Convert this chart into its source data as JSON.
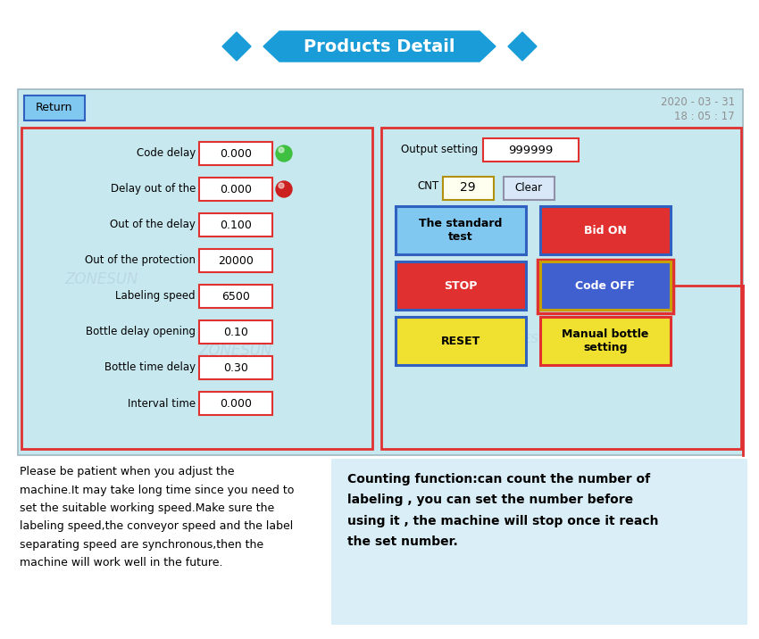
{
  "title": "Products Detail",
  "title_bg": "#1a9cd8",
  "title_color": "#ffffff",
  "screen_bg": "#c8e8f0",
  "screen_border": "#e03030",
  "return_btn_color": "#80c8f0",
  "return_btn_text": "Return",
  "date_text": "2020 - 03 - 31",
  "time_text": "18 : 05 : 17",
  "left_fields": [
    {
      "label": "Code delay",
      "value": "0.000",
      "indicator": "green"
    },
    {
      "label": "Delay out of the",
      "value": "0.000",
      "indicator": "red"
    },
    {
      "label": "Out of the delay",
      "value": "0.100"
    },
    {
      "label": "Out of the protection",
      "value": "20000"
    },
    {
      "label": "Labeling speed",
      "value": "6500"
    },
    {
      "label": "Bottle delay opening",
      "value": "0.10"
    },
    {
      "label": "Bottle time delay",
      "value": "0.30"
    },
    {
      "label": "Interval time",
      "value": "0.000"
    }
  ],
  "right_top": {
    "output_label": "Output setting",
    "output_value": "999999",
    "cnt_label": "CNT",
    "cnt_value": "29",
    "clear_text": "Clear"
  },
  "right_buttons": [
    {
      "text": "The standard\ntest",
      "color": "#80c8f0",
      "text_color": "#000000",
      "border": "#3060c0",
      "row": 0,
      "col": 0
    },
    {
      "text": "Bid ON",
      "color": "#e03030",
      "text_color": "#ffffff",
      "border": "#3060c0",
      "row": 0,
      "col": 1
    },
    {
      "text": "STOP",
      "color": "#e03030",
      "text_color": "#ffffff",
      "border": "#3060c0",
      "row": 1,
      "col": 0
    },
    {
      "text": "Code OFF",
      "color": "#4060d0",
      "text_color": "#ffffff",
      "border": "#c8a000",
      "highlighted": true,
      "row": 1,
      "col": 1
    },
    {
      "text": "RESET",
      "color": "#f0e030",
      "text_color": "#000000",
      "border": "#3060c0",
      "row": 2,
      "col": 0
    },
    {
      "text": "Manual bottle\nsetting",
      "color": "#f0e030",
      "text_color": "#000000",
      "border": "#e03030",
      "row": 2,
      "col": 1
    }
  ],
  "left_text": "Please be patient when you adjust the\nmachine.It may take long time since you need to\nset the suitable working speed.Make sure the\nlabeling speed,the conveyor speed and the label\nseparating speed are synchronous,then the\nmachine will work well in the future.",
  "right_text": "Counting function:can count the number of\nlabeling , you can set the number before\nusing it , the machine will stop once it reach\nthe set number.",
  "right_text_bg": "#daeef8",
  "watermark": "ZONESUN",
  "watermark_color": "#b0c8d8"
}
